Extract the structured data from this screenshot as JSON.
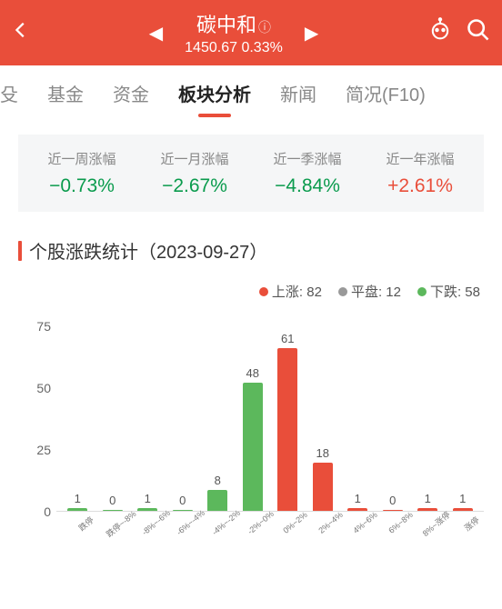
{
  "header": {
    "title": "碳中和",
    "price": "1450.67",
    "change": "0.33%"
  },
  "tabs": {
    "items": [
      {
        "label": "殳"
      },
      {
        "label": "基金"
      },
      {
        "label": "资金"
      },
      {
        "label": "板块分析"
      },
      {
        "label": "新闻"
      },
      {
        "label": "简况(F10)"
      }
    ],
    "active_index": 3
  },
  "stats": [
    {
      "label": "近一周涨幅",
      "value": "−0.73%",
      "dir": "down"
    },
    {
      "label": "近一月涨幅",
      "value": "−2.67%",
      "dir": "down"
    },
    {
      "label": "近一季涨幅",
      "value": "−4.84%",
      "dir": "down"
    },
    {
      "label": "近一年涨幅",
      "value": "+2.61%",
      "dir": "up"
    }
  ],
  "section": {
    "title": "个股涨跌统计（2023-09-27）"
  },
  "legend": [
    {
      "label": "上涨: 82",
      "color": "#e94e3a"
    },
    {
      "label": "平盘: 12",
      "color": "#999999"
    },
    {
      "label": "下跌: 58",
      "color": "#5cb85c"
    }
  ],
  "chart": {
    "ymax": 75,
    "yticks": [
      "75",
      "50",
      "25",
      "0"
    ],
    "color_up": "#e94e3a",
    "color_down": "#5cb85c",
    "bars": [
      {
        "label": "跌停",
        "value": 1,
        "dir": "down"
      },
      {
        "label": "跌停~-8%",
        "value": 0,
        "dir": "down"
      },
      {
        "label": "-8%~-6%",
        "value": 1,
        "dir": "down"
      },
      {
        "label": "-6%~-4%",
        "value": 0,
        "dir": "down"
      },
      {
        "label": "-4%~-2%",
        "value": 8,
        "dir": "down"
      },
      {
        "label": "-2%~0%",
        "value": 48,
        "dir": "down"
      },
      {
        "label": "0%~2%",
        "value": 61,
        "dir": "up"
      },
      {
        "label": "2%~4%",
        "value": 18,
        "dir": "up"
      },
      {
        "label": "4%~6%",
        "value": 1,
        "dir": "up"
      },
      {
        "label": "6%~8%",
        "value": 0,
        "dir": "up"
      },
      {
        "label": "8%~涨停",
        "value": 1,
        "dir": "up"
      },
      {
        "label": "涨停",
        "value": 1,
        "dir": "up"
      }
    ]
  }
}
